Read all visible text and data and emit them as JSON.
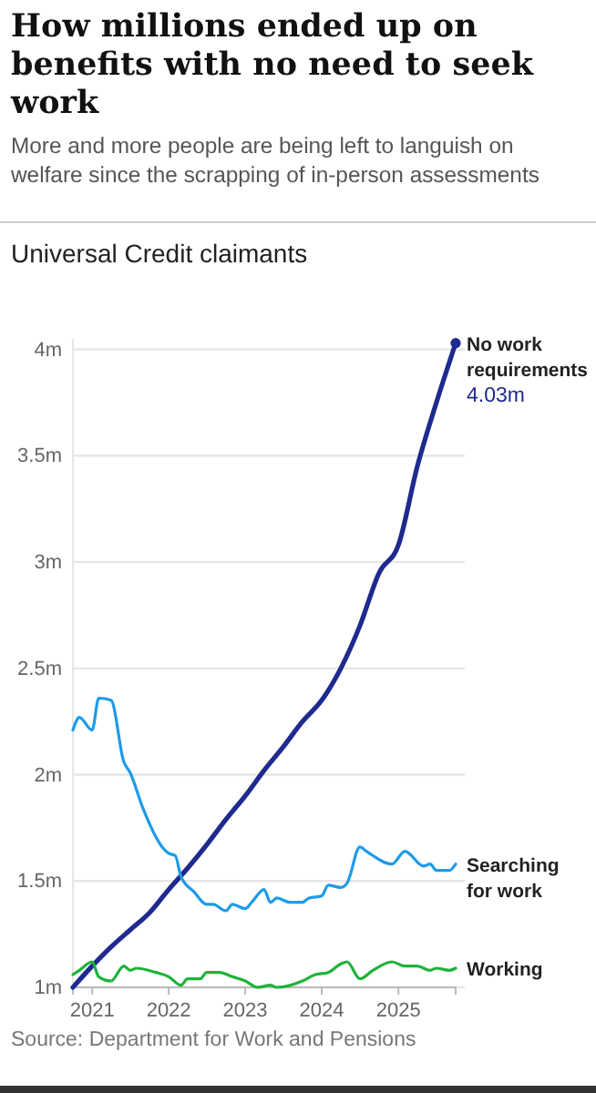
{
  "chart_data": {
    "type": "line",
    "title": "How millions ended up on benefits with no need to seek work",
    "subtitle": "More and more people are being left to languish on welfare since the scrapping of in-person assessments",
    "ylabel": "Universal Credit claimants",
    "annotations": [
      "Source: Department for Work and Pensions"
    ],
    "xlim": [
      "2020-10",
      "2025-10"
    ],
    "xticks": [
      {
        "value": "2021",
        "label": "2021"
      },
      {
        "value": "2022",
        "label": "2022"
      },
      {
        "value": "2023",
        "label": "2023"
      },
      {
        "value": "2024",
        "label": "2024"
      },
      {
        "value": "2025",
        "label": "2025"
      }
    ],
    "ylim": [
      1,
      4.05
    ],
    "yticks": [
      {
        "value": 1,
        "label": "1m"
      },
      {
        "value": 1.5,
        "label": "1.5m"
      },
      {
        "value": 2,
        "label": "2m"
      },
      {
        "value": 2.5,
        "label": "2.5m"
      },
      {
        "value": 3,
        "label": "3m"
      },
      {
        "value": 3.5,
        "label": "3.5m"
      },
      {
        "value": 4,
        "label": "4m"
      }
    ],
    "grid": "y",
    "legend": false,
    "line_style": "solid",
    "series": [
      {
        "name": "No work requirements",
        "color": "#1f2a8f",
        "x": [
          "2020-10",
          "2021-01",
          "2021-04",
          "2021-07",
          "2021-10",
          "2022-01",
          "2022-04",
          "2022-07",
          "2022-10",
          "2023-01",
          "2023-04",
          "2023-07",
          "2023-10",
          "2024-01",
          "2024-04",
          "2024-07",
          "2024-10",
          "2025-01",
          "2025-04",
          "2025-07",
          "2025-10"
        ],
        "values": [
          1.0,
          1.1,
          1.19,
          1.27,
          1.35,
          1.46,
          1.56,
          1.67,
          1.79,
          1.9,
          2.02,
          2.13,
          2.25,
          2.35,
          2.5,
          2.7,
          2.95,
          3.08,
          3.45,
          3.75,
          4.03
        ],
        "value_labels": [
          null,
          null,
          null,
          null,
          null,
          null,
          null,
          null,
          null,
          null,
          null,
          null,
          null,
          null,
          null,
          null,
          null,
          null,
          null,
          null,
          "4.03m"
        ]
      },
      {
        "name": "Searching for work",
        "color": "#1e9be8",
        "x": [
          "2020-10",
          "2020-11",
          "2021-01",
          "2021-02",
          "2021-04",
          "2021-06",
          "2021-07",
          "2021-09",
          "2021-12",
          "2022-01",
          "2022-02",
          "2022-03",
          "2022-05",
          "2022-07",
          "2022-08",
          "2022-10",
          "2022-11",
          "2023-01",
          "2023-02",
          "2023-04",
          "2023-05",
          "2023-06",
          "2023-08",
          "2023-10",
          "2023-11",
          "2024-01",
          "2024-02",
          "2024-04",
          "2024-05",
          "2024-07",
          "2024-08",
          "2024-12",
          "2025-02",
          "2025-05",
          "2025-06",
          "2025-07",
          "2025-09",
          "2025-10"
        ],
        "values": [
          2.21,
          2.27,
          2.21,
          2.36,
          2.35,
          2.06,
          2.01,
          1.84,
          1.66,
          1.63,
          1.62,
          1.52,
          1.45,
          1.39,
          1.39,
          1.36,
          1.39,
          1.37,
          1.4,
          1.46,
          1.4,
          1.42,
          1.4,
          1.4,
          1.42,
          1.43,
          1.48,
          1.47,
          1.49,
          1.66,
          1.64,
          1.58,
          1.64,
          1.57,
          1.58,
          1.55,
          1.55,
          1.58
        ]
      },
      {
        "name": "Working",
        "color": "#1db33a",
        "x": [
          "2020-10",
          "2020-11",
          "2021-01",
          "2021-02",
          "2021-04",
          "2021-06",
          "2021-07",
          "2021-08",
          "2021-11",
          "2022-01",
          "2022-03",
          "2022-04",
          "2022-06",
          "2022-07",
          "2022-09",
          "2022-11",
          "2023-01",
          "2023-03",
          "2023-05",
          "2023-06",
          "2023-10",
          "2023-12",
          "2024-02",
          "2024-04",
          "2024-05",
          "2024-07",
          "2024-09",
          "2024-12",
          "2025-02",
          "2025-04",
          "2025-06",
          "2025-07",
          "2025-09",
          "2025-10"
        ],
        "values": [
          1.06,
          1.08,
          1.12,
          1.05,
          1.03,
          1.1,
          1.08,
          1.09,
          1.07,
          1.05,
          1.01,
          1.04,
          1.04,
          1.07,
          1.07,
          1.05,
          1.03,
          1.0,
          1.01,
          1.0,
          1.03,
          1.06,
          1.07,
          1.11,
          1.12,
          1.04,
          1.08,
          1.12,
          1.1,
          1.1,
          1.08,
          1.09,
          1.08,
          1.09
        ]
      }
    ]
  }
}
